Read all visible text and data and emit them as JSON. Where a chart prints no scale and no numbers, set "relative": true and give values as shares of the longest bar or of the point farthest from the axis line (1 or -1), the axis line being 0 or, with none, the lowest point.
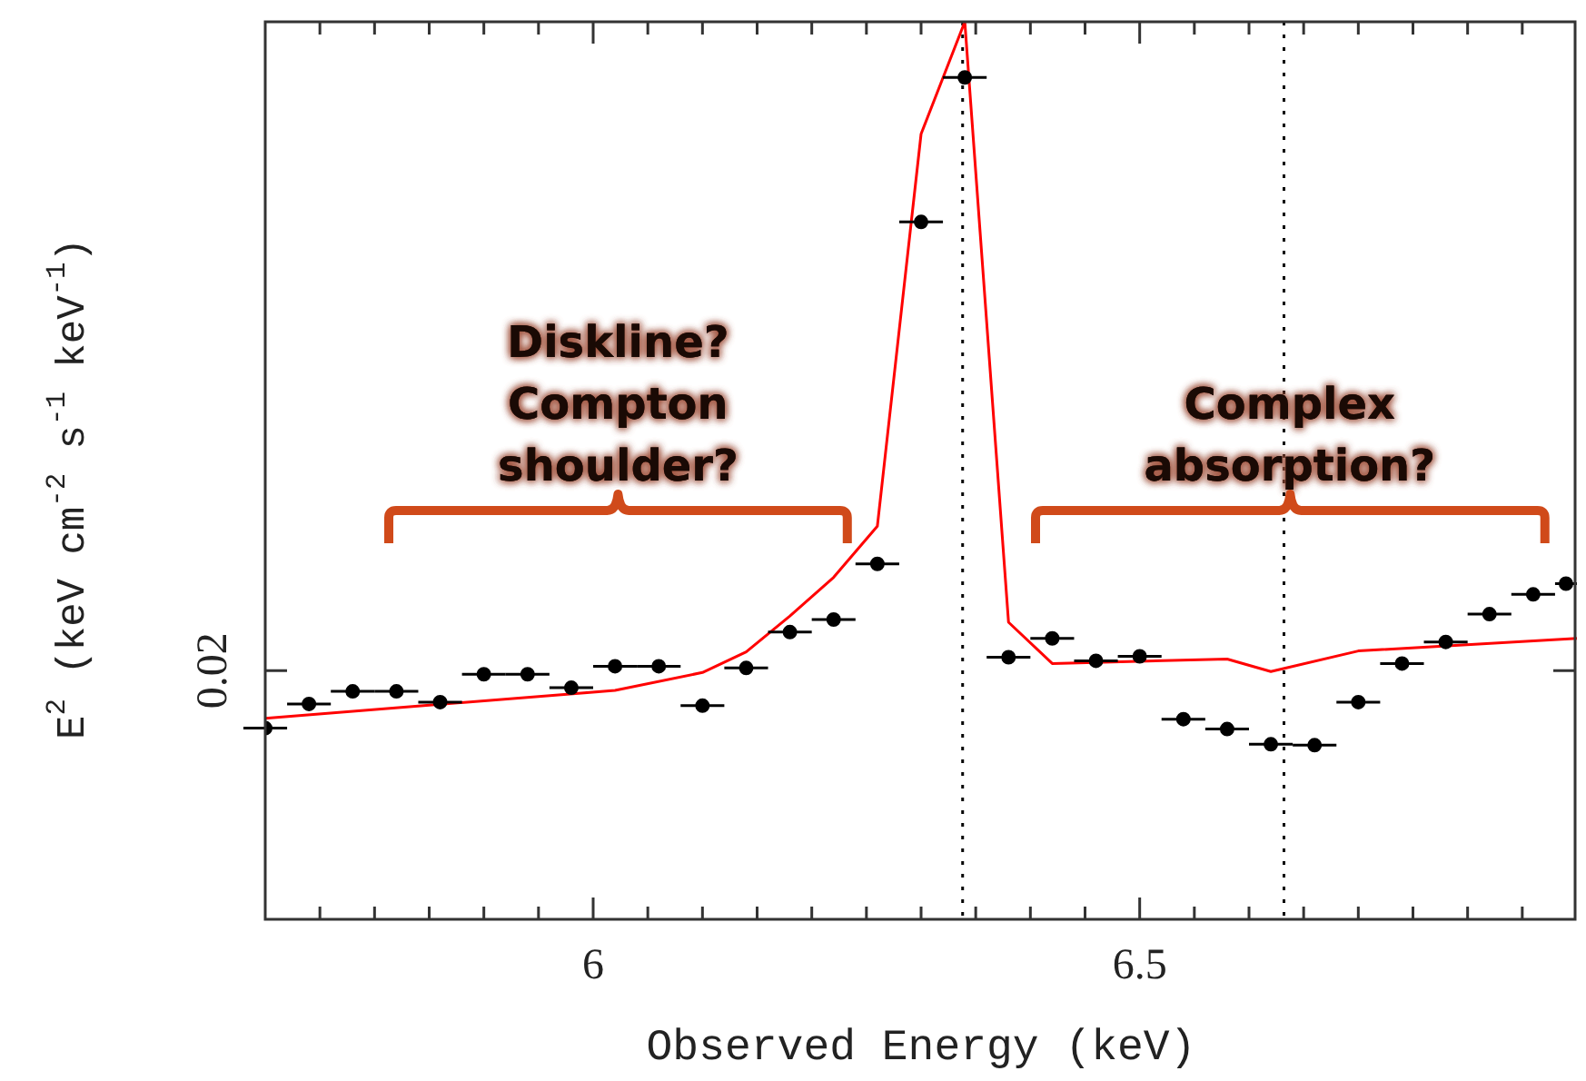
{
  "chart_data": {
    "type": "scatter",
    "xlabel": "Observed Energy (keV)",
    "ylabel": "E$^{2}$ (keV cm$^{-2}$ s$^{-1}$ keV$^{-1}$)",
    "xlim": [
      5.7,
      6.9
    ],
    "xticks": [
      {
        "value": 5.75,
        "label": null
      },
      {
        "value": 5.8,
        "label": null
      },
      {
        "value": 5.85,
        "label": null
      },
      {
        "value": 5.9,
        "label": null
      },
      {
        "value": 5.95,
        "label": null
      },
      6,
      {
        "value": 6.05,
        "label": null
      },
      {
        "value": 6.1,
        "label": null
      },
      {
        "value": 6.15,
        "label": null
      },
      {
        "value": 6.2,
        "label": null
      },
      {
        "value": 6.25,
        "label": null
      },
      {
        "value": 6.3,
        "label": null
      },
      {
        "value": 6.35,
        "label": null
      },
      {
        "value": 6.4,
        "label": null
      },
      {
        "value": 6.45,
        "label": null
      },
      6.5,
      {
        "value": 6.55,
        "label": null
      },
      {
        "value": 6.6,
        "label": null
      },
      {
        "value": 6.65,
        "label": null
      },
      {
        "value": 6.7,
        "label": null
      },
      {
        "value": 6.75,
        "label": null
      },
      {
        "value": 6.8,
        "label": null
      },
      {
        "value": 6.85,
        "label": null
      }
    ],
    "relative": true,
    "grid": false,
    "legend": false,
    "ref_lines": [
      {
        "axis": "x",
        "value": 6.338,
        "line_style": "dotted",
        "color": "#000000"
      },
      {
        "axis": "x",
        "value": 6.632,
        "line_style": "dotted",
        "color": "#000000"
      }
    ],
    "annotations": [
      "0.02",
      "Diskline?\nCompton\nshoulder?",
      "Complex\nabsorption?"
    ],
    "series": [
      {
        "type": "scatter",
        "color": "#000000",
        "marker": "circle",
        "x": [
          5.7,
          5.74,
          5.78,
          5.82,
          5.86,
          5.9,
          5.94,
          5.98,
          6.02,
          6.06,
          6.1,
          6.14,
          6.18,
          6.22,
          6.26,
          6.3,
          6.34,
          6.38,
          6.42,
          6.46,
          6.5,
          6.54,
          6.58,
          6.62,
          6.66,
          6.7,
          6.74,
          6.78,
          6.82,
          6.86,
          6.89
        ],
        "values": [
          0.213,
          0.24,
          0.254,
          0.254,
          0.242,
          0.273,
          0.273,
          0.258,
          0.282,
          0.282,
          0.238,
          0.28,
          0.32,
          0.334,
          0.396,
          0.777,
          0.938,
          0.292,
          0.313,
          0.288,
          0.293,
          0.223,
          0.212,
          0.195,
          0.194,
          0.242,
          0.285,
          0.309,
          0.34,
          0.362,
          0.374
        ],
        "xerrors": [
          0.02,
          0.02,
          0.02,
          0.02,
          0.02,
          0.02,
          0.02,
          0.02,
          0.02,
          0.02,
          0.02,
          0.02,
          0.02,
          0.02,
          0.02,
          0.02,
          0.02,
          0.02,
          0.02,
          0.02,
          0.02,
          0.02,
          0.02,
          0.02,
          0.02,
          0.02,
          0.02,
          0.02,
          0.02,
          0.02,
          0.01
        ]
      },
      {
        "type": "line",
        "color": "#ff0000",
        "marker": "none",
        "x": [
          5.7,
          6.02,
          6.1,
          6.14,
          6.18,
          6.22,
          6.26,
          6.3,
          6.34,
          6.38,
          6.42,
          6.58,
          6.62,
          6.7,
          6.9
        ],
        "values": [
          0.224,
          0.255,
          0.275,
          0.298,
          0.338,
          0.381,
          0.438,
          0.875,
          1.0,
          0.331,
          0.285,
          0.29,
          0.276,
          0.299,
          0.313
        ]
      }
    ]
  }
}
